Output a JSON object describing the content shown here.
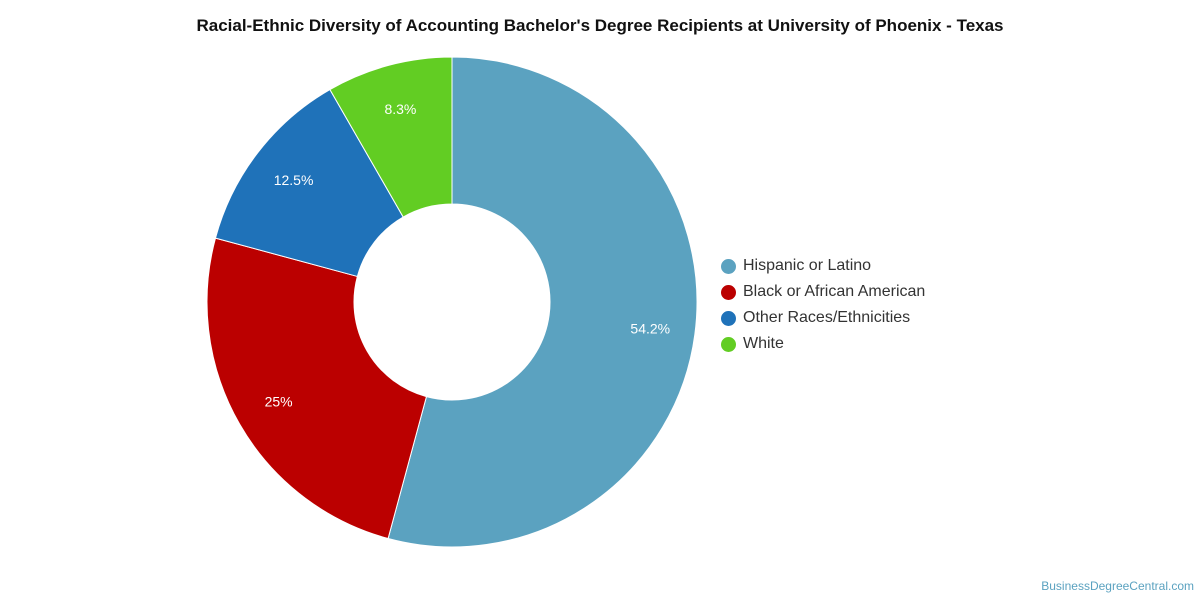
{
  "chart_data": {
    "type": "pie",
    "title": "Racial-Ethnic Diversity of Accounting Bachelor's Degree Recipients at University of Phoenix - Texas",
    "donut": true,
    "legend_position": "right",
    "slices": [
      {
        "label": "Hispanic or Latino",
        "value": 54.2,
        "display": "54.2%",
        "color": "#5ba2c0"
      },
      {
        "label": "Black or African American",
        "value": 25,
        "display": "25%",
        "color": "#bb0000"
      },
      {
        "label": "Other Races/Ethnicities",
        "value": 12.5,
        "display": "12.5%",
        "color": "#1f72b9"
      },
      {
        "label": "White",
        "value": 8.3,
        "display": "8.3%",
        "color": "#62cd23"
      }
    ]
  },
  "source": "BusinessDegreeCentral.com"
}
